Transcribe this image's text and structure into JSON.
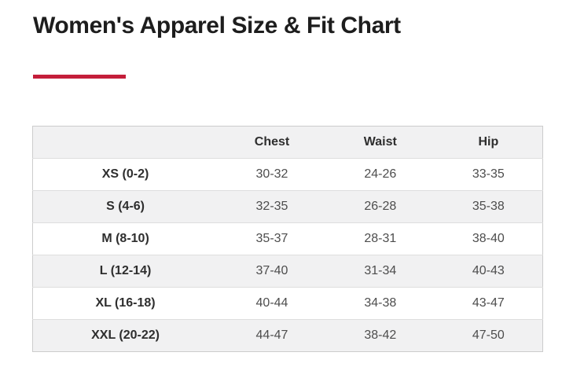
{
  "page": {
    "title": "Women's Apparel Size & Fit Chart"
  },
  "colors": {
    "accent_red": "#c41e3a",
    "header_background": "#f1f1f2",
    "stripe_background": "#f1f1f2",
    "table_border": "#cccccc",
    "title_text": "#1d1d1d",
    "measurement_text": "#4d4d4d"
  },
  "table": {
    "headers": [
      "",
      "Chest",
      "Waist",
      "Hip"
    ],
    "rows": [
      {
        "size": "XS (0-2)",
        "chest": "30-32",
        "waist": "24-26",
        "hip": "33-35"
      },
      {
        "size": "S (4-6)",
        "chest": "32-35",
        "waist": "26-28",
        "hip": "35-38"
      },
      {
        "size": "M (8-10)",
        "chest": "35-37",
        "waist": "28-31",
        "hip": "38-40"
      },
      {
        "size": "L (12-14)",
        "chest": "37-40",
        "waist": "31-34",
        "hip": "40-43"
      },
      {
        "size": "XL (16-18)",
        "chest": "40-44",
        "waist": "34-38",
        "hip": "43-47"
      },
      {
        "size": "XXL (20-22)",
        "chest": "44-47",
        "waist": "38-42",
        "hip": "47-50"
      }
    ]
  }
}
